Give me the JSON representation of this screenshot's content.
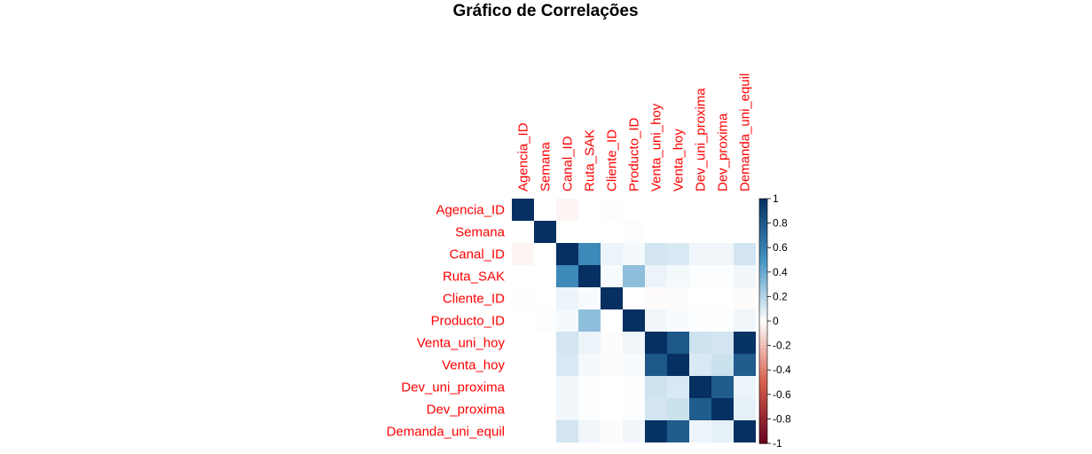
{
  "chart_data": {
    "type": "heatmap",
    "title": "Gráfico de Correlações",
    "variables": [
      "Agencia_ID",
      "Semana",
      "Canal_ID",
      "Ruta_SAK",
      "Cliente_ID",
      "Producto_ID",
      "Venta_uni_hoy",
      "Venta_hoy",
      "Dev_uni_proxima",
      "Dev_proxima",
      "Demanda_uni_equil"
    ],
    "matrix": [
      [
        1.0,
        0.0,
        -0.03,
        0.0,
        0.01,
        0.0,
        0.0,
        0.0,
        0.0,
        0.0,
        0.0
      ],
      [
        0.0,
        1.0,
        0.0,
        0.0,
        0.0,
        0.01,
        0.0,
        0.0,
        0.0,
        0.0,
        0.0
      ],
      [
        -0.03,
        0.0,
        1.0,
        0.55,
        0.05,
        0.03,
        0.12,
        0.1,
        0.04,
        0.04,
        0.12
      ],
      [
        0.0,
        0.0,
        0.55,
        1.0,
        0.02,
        0.3,
        0.05,
        0.03,
        0.01,
        0.01,
        0.04
      ],
      [
        0.01,
        0.0,
        0.05,
        0.02,
        1.0,
        0.0,
        -0.01,
        -0.01,
        0.0,
        0.0,
        -0.01
      ],
      [
        0.0,
        0.01,
        0.03,
        0.3,
        0.0,
        1.0,
        0.04,
        0.02,
        0.01,
        0.01,
        0.04
      ],
      [
        0.0,
        0.0,
        0.12,
        0.05,
        -0.01,
        0.04,
        1.0,
        0.8,
        0.13,
        0.12,
        0.98
      ],
      [
        0.0,
        0.0,
        0.1,
        0.03,
        -0.01,
        0.02,
        0.8,
        1.0,
        0.1,
        0.14,
        0.78
      ],
      [
        0.0,
        0.0,
        0.04,
        0.01,
        0.0,
        0.01,
        0.13,
        0.1,
        1.0,
        0.78,
        0.05
      ],
      [
        0.0,
        0.0,
        0.04,
        0.01,
        0.0,
        0.01,
        0.12,
        0.14,
        0.78,
        1.0,
        0.07
      ],
      [
        0.0,
        0.0,
        0.12,
        0.04,
        -0.01,
        0.04,
        0.98,
        0.78,
        0.05,
        0.07,
        1.0
      ]
    ],
    "colorbar": {
      "ticks": [
        "1",
        "0.8",
        "0.6",
        "0.4",
        "0.2",
        "0",
        "-0.2",
        "-0.4",
        "-0.6",
        "-0.8",
        "-1"
      ],
      "range": [
        -1,
        1
      ]
    },
    "colors": {
      "label": "#ff0000",
      "negative_end": "#67001f",
      "negative_mid": "#d6604d",
      "neutral": "#ffffff",
      "positive_mid": "#4393c3",
      "positive_end": "#053061"
    }
  }
}
